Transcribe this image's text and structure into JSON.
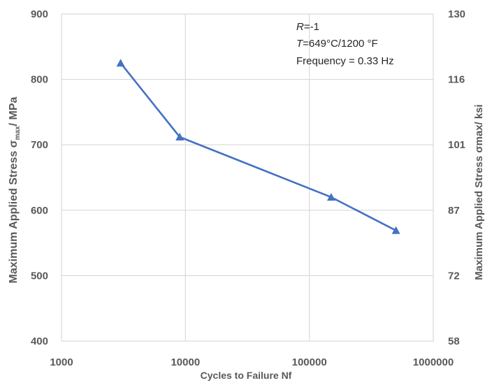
{
  "chart_data": {
    "type": "line",
    "x_scale": "log",
    "xlabel": "Cycles to Failure Nf",
    "ylabel_left": {
      "prefix": "Maximum Applied Stress σ",
      "sub": "max",
      "suffix": "/ MPa"
    },
    "ylabel_right": "Maximum Applied Stress σmax/ ksi",
    "xlim": [
      1000,
      1000000
    ],
    "ylim": [
      400,
      900
    ],
    "ylim_right": [
      58,
      130
    ],
    "x_ticks": [
      {
        "value": 1000,
        "label": "1000"
      },
      {
        "value": 10000,
        "label": "10000"
      },
      {
        "value": 100000,
        "label": "100000"
      },
      {
        "value": 1000000,
        "label": "1000000"
      }
    ],
    "y_ticks": [
      {
        "value": 400,
        "label": "400"
      },
      {
        "value": 500,
        "label": "500"
      },
      {
        "value": 600,
        "label": "600"
      },
      {
        "value": 700,
        "label": "700"
      },
      {
        "value": 800,
        "label": "800"
      },
      {
        "value": 900,
        "label": "900"
      }
    ],
    "y_ticks_right": [
      {
        "value": 400,
        "label": "58"
      },
      {
        "value": 500,
        "label": "72"
      },
      {
        "value": 600,
        "label": "87"
      },
      {
        "value": 700,
        "label": "101"
      },
      {
        "value": 800,
        "label": "116"
      },
      {
        "value": 900,
        "label": "130"
      }
    ],
    "grid": true,
    "marker": "triangle",
    "series": [
      {
        "color": "#4472c4",
        "points": [
          {
            "x": 3000,
            "y": 825
          },
          {
            "x": 9000,
            "y": 712
          },
          {
            "x": 150000,
            "y": 620
          },
          {
            "x": 500000,
            "y": 569
          }
        ]
      }
    ],
    "annotations": [
      {
        "italic": "R",
        "rest": "=-1"
      },
      {
        "italic": "T",
        "rest": "=649°C/1200 °F"
      },
      {
        "italic": "",
        "rest": "Frequency = 0.33 Hz"
      }
    ]
  }
}
